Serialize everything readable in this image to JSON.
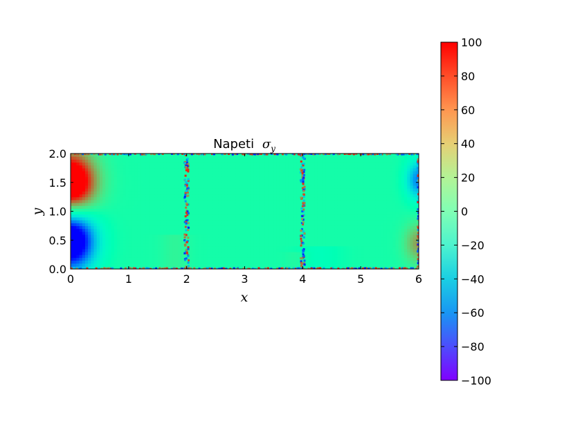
{
  "chart_data": {
    "type": "heatmap",
    "title": "Napeti",
    "title_symbol": "σ",
    "title_subscript": "y",
    "xlabel": "x",
    "ylabel": "y",
    "xlim": [
      0,
      6
    ],
    "ylim": [
      0,
      2
    ],
    "xticks": [
      "0",
      "1",
      "2",
      "3",
      "4",
      "5",
      "6"
    ],
    "yticks": [
      "0.0",
      "0.5",
      "1.0",
      "1.5",
      "2.0"
    ],
    "colormap": "rainbow",
    "colorbar": {
      "range": [
        -100,
        100
      ],
      "ticks": [
        "100",
        "80",
        "60",
        "40",
        "20",
        "0",
        "−20",
        "−40",
        "−60",
        "−80",
        "−100"
      ]
    },
    "field_features": [
      {
        "description": "high tension lobe",
        "x_center": 0.1,
        "y_center": 1.5,
        "value": 100
      },
      {
        "description": "high compression lobe",
        "x_center": 0.1,
        "y_center": 0.5,
        "value": -100
      },
      {
        "description": "right edge lower bulge",
        "x_center": 6.0,
        "y_center": 0.5,
        "value": 45
      },
      {
        "description": "right edge upper bulge",
        "x_center": 6.0,
        "y_center": 1.5,
        "value": -55
      },
      {
        "description": "interface band",
        "x_center": 2.0,
        "value": "alternating ±80"
      },
      {
        "description": "interface band",
        "x_center": 4.0,
        "value": "alternating ±80"
      }
    ],
    "background_value": 8
  }
}
